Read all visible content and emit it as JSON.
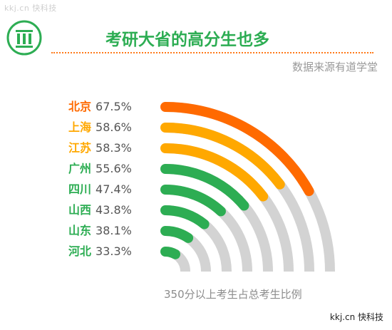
{
  "watermark_top": "kkj.cn 快科技",
  "title": "考研大省的高分生也多",
  "source": "数据来源有道学堂",
  "logo_icon": "pillar-logo-icon",
  "colors": {
    "green": "#2dad53",
    "orange_dark": "#ff6a00",
    "orange_light": "#ffa800",
    "track": "#d3d3d3",
    "accent_line": "#ff7a1a"
  },
  "chart_data": {
    "type": "radial-bar",
    "title": "考研大省的高分生也多",
    "caption": "350分以上考生占总考生比例",
    "unit": "%",
    "categories": [
      "北京",
      "上海",
      "江苏",
      "广州",
      "四川",
      "山西",
      "山东",
      "河北"
    ],
    "values": [
      67.5,
      58.6,
      58.3,
      55.6,
      47.4,
      43.8,
      38.1,
      33.3
    ],
    "value_labels": [
      "67.5%",
      "58.6%",
      "58.3%",
      "55.6%",
      "47.4%",
      "43.8%",
      "38.1%",
      "33.3%"
    ],
    "colors": [
      "#ff6a00",
      "#ffa800",
      "#ffa800",
      "#2dad53",
      "#2dad53",
      "#2dad53",
      "#2dad53",
      "#2dad53"
    ],
    "full_scale_percent": 100
  },
  "watermark_bottom": "kkj.cn 快科技"
}
